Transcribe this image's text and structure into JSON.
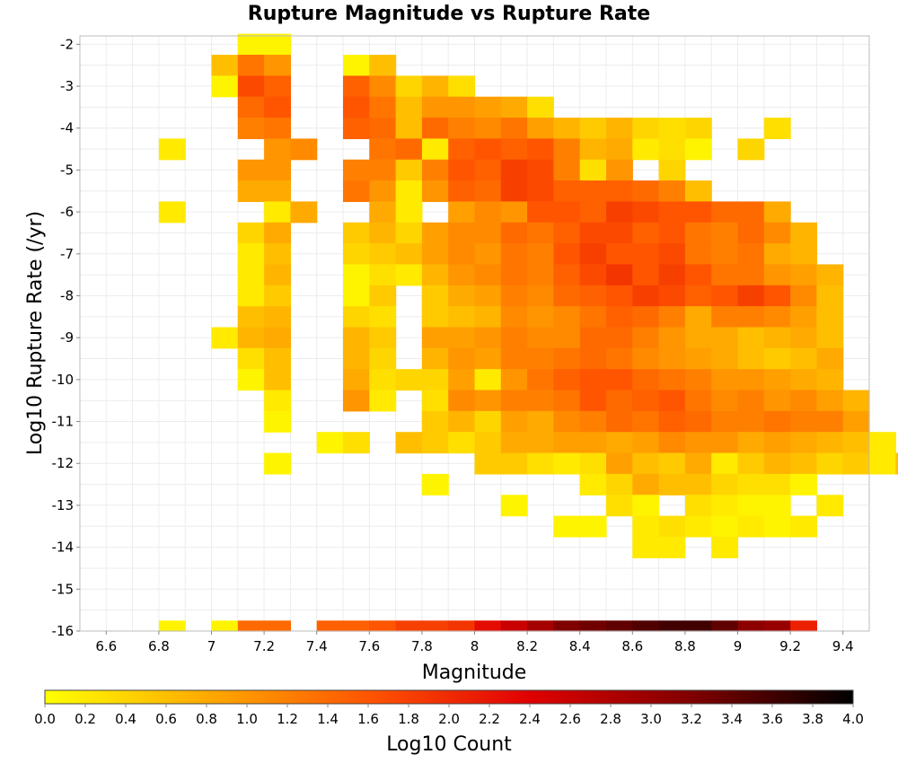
{
  "chart_data": {
    "type": "heatmap",
    "title": "Rupture Magnitude vs Rupture Rate",
    "xlabel": "Magnitude",
    "ylabel": "Log10 Rupture Rate (/yr)",
    "colorbar_label": "Log10 Count",
    "xlim": [
      6.5,
      9.5
    ],
    "ylim": [
      -16,
      -1.8
    ],
    "x_ticks": [
      "6.6",
      "6.8",
      "7",
      "7.2",
      "7.4",
      "7.6",
      "7.8",
      "8",
      "8.2",
      "8.4",
      "8.6",
      "8.8",
      "9",
      "9.2",
      "9.4"
    ],
    "y_ticks": [
      "-2",
      "-3",
      "-4",
      "-5",
      "-6",
      "-7",
      "-8",
      "-9",
      "-10",
      "-11",
      "-12",
      "-13",
      "-14",
      "-15",
      "-16"
    ],
    "colorbar_range": [
      0.0,
      4.0
    ],
    "colorbar_ticks": [
      "0.0",
      "0.2",
      "0.4",
      "0.6",
      "0.8",
      "1.0",
      "1.2",
      "1.4",
      "1.6",
      "1.8",
      "2.0",
      "2.2",
      "2.4",
      "2.6",
      "2.8",
      "3.0",
      "3.2",
      "3.4",
      "3.6",
      "3.8",
      "4.0"
    ],
    "colormap": "yellow-orange-red-black",
    "colors": [
      "#ffff00",
      "#ffaa00",
      "#ff5500",
      "#e00000",
      "#800000",
      "#000000"
    ],
    "grid": true,
    "x_bin_width": 0.1,
    "y_bin_width": 0.5,
    "rows": [
      {
        "y": -2.0,
        "x0": 7.15,
        "values": [
          0.1,
          0.1
        ]
      },
      {
        "y": -2.5,
        "x0": 7.05,
        "values": [
          0.6,
          1.3,
          1.0,
          null,
          null,
          0.1,
          0.6
        ]
      },
      {
        "y": -3.0,
        "x0": 7.05,
        "values": [
          0.1,
          1.7,
          1.5,
          null,
          null,
          1.5,
          1.1,
          0.4,
          0.7,
          0.3
        ]
      },
      {
        "y": -3.5,
        "x0": 7.15,
        "values": [
          1.4,
          1.6,
          null,
          null,
          1.6,
          1.3,
          0.6,
          1.0,
          1.0,
          0.9,
          0.8,
          0.3
        ]
      },
      {
        "y": -4.0,
        "x0": 7.15,
        "values": [
          1.2,
          1.3,
          null,
          null,
          1.5,
          1.4,
          0.6,
          1.4,
          1.2,
          1.1,
          1.3,
          0.9,
          0.7,
          0.5,
          0.7,
          0.4,
          0.3,
          0.4,
          null,
          null,
          0.3
        ]
      },
      {
        "y": -4.5,
        "x0": 6.85,
        "values": [
          0.2,
          null,
          null,
          null,
          1.0,
          1.1,
          null,
          null,
          1.3,
          1.4,
          0.2,
          1.5,
          1.6,
          1.5,
          1.6,
          1.2,
          0.7,
          0.8,
          0.2,
          0.3,
          0.1,
          null,
          0.4
        ]
      },
      {
        "y": -5.0,
        "x0": 7.15,
        "values": [
          1.0,
          1.0,
          null,
          null,
          1.2,
          1.2,
          0.5,
          1.2,
          1.6,
          1.5,
          1.8,
          1.7,
          1.2,
          0.3,
          1.0,
          null,
          0.4
        ]
      },
      {
        "y": -5.5,
        "x0": 7.15,
        "values": [
          0.8,
          0.8,
          null,
          null,
          1.3,
          1.0,
          0.2,
          1.0,
          1.5,
          1.4,
          1.8,
          1.7,
          1.5,
          1.5,
          1.5,
          1.4,
          1.2,
          0.6
        ]
      },
      {
        "y": -6.0,
        "x0": 6.85,
        "values": [
          0.2,
          null,
          null,
          null,
          0.2,
          0.8,
          null,
          null,
          0.8,
          0.2,
          null,
          0.9,
          1.1,
          1.0,
          1.6,
          1.6,
          1.5,
          1.8,
          1.7,
          1.6,
          1.6,
          1.4,
          1.4,
          0.8
        ]
      },
      {
        "y": -6.5,
        "x0": 7.15,
        "values": [
          0.4,
          0.8,
          null,
          null,
          0.5,
          0.7,
          0.4,
          0.9,
          1.1,
          1.1,
          1.4,
          1.3,
          1.5,
          1.7,
          1.7,
          1.5,
          1.6,
          1.3,
          1.2,
          1.4,
          1.1,
          0.7
        ]
      },
      {
        "y": -7.0,
        "x0": 7.15,
        "values": [
          0.2,
          0.6,
          null,
          null,
          0.4,
          0.5,
          0.6,
          0.9,
          1.1,
          1.0,
          1.3,
          1.2,
          1.6,
          1.8,
          1.6,
          1.6,
          1.7,
          1.3,
          1.2,
          1.3,
          0.8,
          0.7
        ]
      },
      {
        "y": -7.5,
        "x0": 7.15,
        "values": [
          0.2,
          0.7,
          null,
          null,
          0.1,
          0.3,
          0.2,
          0.7,
          1.0,
          1.1,
          1.3,
          1.2,
          1.5,
          1.7,
          1.9,
          1.6,
          1.8,
          1.6,
          1.3,
          1.3,
          1.0,
          0.9,
          0.7
        ]
      },
      {
        "y": -8.0,
        "x0": 7.15,
        "values": [
          0.2,
          0.5,
          null,
          null,
          0.1,
          0.5,
          null,
          0.5,
          0.8,
          0.9,
          1.2,
          1.1,
          1.4,
          1.5,
          1.6,
          1.8,
          1.7,
          1.5,
          1.6,
          1.8,
          1.6,
          1.1,
          0.6
        ]
      },
      {
        "y": -8.5,
        "x0": 7.15,
        "values": [
          0.6,
          0.7,
          null,
          null,
          0.4,
          0.3,
          null,
          0.5,
          0.6,
          0.7,
          1.1,
          1.0,
          1.1,
          1.3,
          1.5,
          1.4,
          1.2,
          0.8,
          1.2,
          1.2,
          1.1,
          0.9,
          0.6
        ]
      },
      {
        "y": -9.0,
        "x0": 7.05,
        "values": [
          0.2,
          0.7,
          0.8,
          null,
          null,
          0.7,
          0.5,
          null,
          0.9,
          0.9,
          1.0,
          1.2,
          1.1,
          1.1,
          1.4,
          1.4,
          1.2,
          1.0,
          0.8,
          0.8,
          0.6,
          0.7,
          0.8,
          0.6
        ]
      },
      {
        "y": -9.5,
        "x0": 7.15,
        "values": [
          0.3,
          0.6,
          null,
          null,
          0.7,
          0.4,
          null,
          0.7,
          1.0,
          0.9,
          1.2,
          1.2,
          1.3,
          1.4,
          1.3,
          1.1,
          1.0,
          0.9,
          0.8,
          0.6,
          0.5,
          0.6,
          0.8
        ]
      },
      {
        "y": -10.0,
        "x0": 7.15,
        "values": [
          0.1,
          0.6,
          null,
          null,
          0.8,
          0.3,
          0.4,
          0.4,
          0.9,
          0.2,
          1.0,
          1.3,
          1.5,
          1.6,
          1.6,
          1.4,
          1.3,
          1.2,
          1.0,
          1.0,
          0.9,
          0.8,
          0.7
        ]
      },
      {
        "y": -10.5,
        "x0": 7.25,
        "values": [
          0.2,
          null,
          null,
          1.0,
          0.2,
          null,
          0.3,
          1.1,
          1.0,
          1.2,
          1.2,
          1.3,
          1.6,
          1.4,
          1.5,
          1.6,
          1.3,
          1.1,
          1.2,
          1.0,
          1.1,
          0.9,
          0.7
        ]
      },
      {
        "y": -11.0,
        "x0": 7.25,
        "values": [
          0.1,
          null,
          null,
          null,
          null,
          null,
          0.5,
          0.7,
          0.4,
          0.9,
          0.8,
          1.1,
          1.2,
          1.4,
          1.3,
          1.5,
          1.4,
          1.2,
          1.2,
          1.3,
          1.2,
          1.2,
          0.9
        ]
      },
      {
        "y": -11.5,
        "x0": 7.45,
        "values": [
          0.1,
          0.3,
          null,
          0.6,
          0.5,
          0.3,
          0.5,
          0.8,
          0.8,
          0.9,
          0.9,
          0.8,
          0.9,
          1.1,
          1.0,
          1.0,
          0.8,
          0.9,
          0.8,
          0.7,
          0.6,
          0.2
        ]
      },
      {
        "y": -12.0,
        "x0": 7.25,
        "values": [
          0.1,
          null,
          null,
          null,
          null,
          null,
          null,
          null,
          0.5,
          0.5,
          0.3,
          0.2,
          0.3,
          0.9,
          0.6,
          0.5,
          0.8,
          0.2,
          0.5,
          0.7,
          0.6,
          0.4,
          0.5,
          0.2,
          0.6
        ]
      },
      {
        "y": -12.5,
        "x0": 7.85,
        "values": [
          0.1,
          null,
          null,
          null,
          null,
          null,
          0.2,
          0.4,
          0.8,
          0.6,
          0.6,
          0.4,
          0.3,
          0.3,
          0.1
        ]
      },
      {
        "y": -13.0,
        "x0": 8.15,
        "values": [
          0.1,
          null,
          null,
          null,
          0.3,
          0.1,
          null,
          0.3,
          0.2,
          0.1,
          0.1,
          null,
          0.2
        ]
      },
      {
        "y": -13.5,
        "x0": 8.35,
        "values": [
          0.1,
          0.1,
          null,
          0.2,
          0.3,
          0.2,
          0.1,
          0.2,
          0.1,
          0.2
        ]
      },
      {
        "y": -14.0,
        "x0": 8.65,
        "values": [
          0.2,
          0.2,
          null,
          0.2
        ]
      },
      {
        "y": -16.0,
        "x0": 6.85,
        "values": [
          0.1,
          null,
          0.1,
          1.4,
          1.4,
          null,
          1.5,
          1.5,
          1.6,
          1.8,
          1.8,
          1.9,
          2.3,
          2.6,
          2.9,
          3.2,
          3.3,
          3.4,
          3.5,
          3.6,
          3.6,
          3.4,
          3.1,
          3.0,
          2.1
        ]
      }
    ]
  }
}
